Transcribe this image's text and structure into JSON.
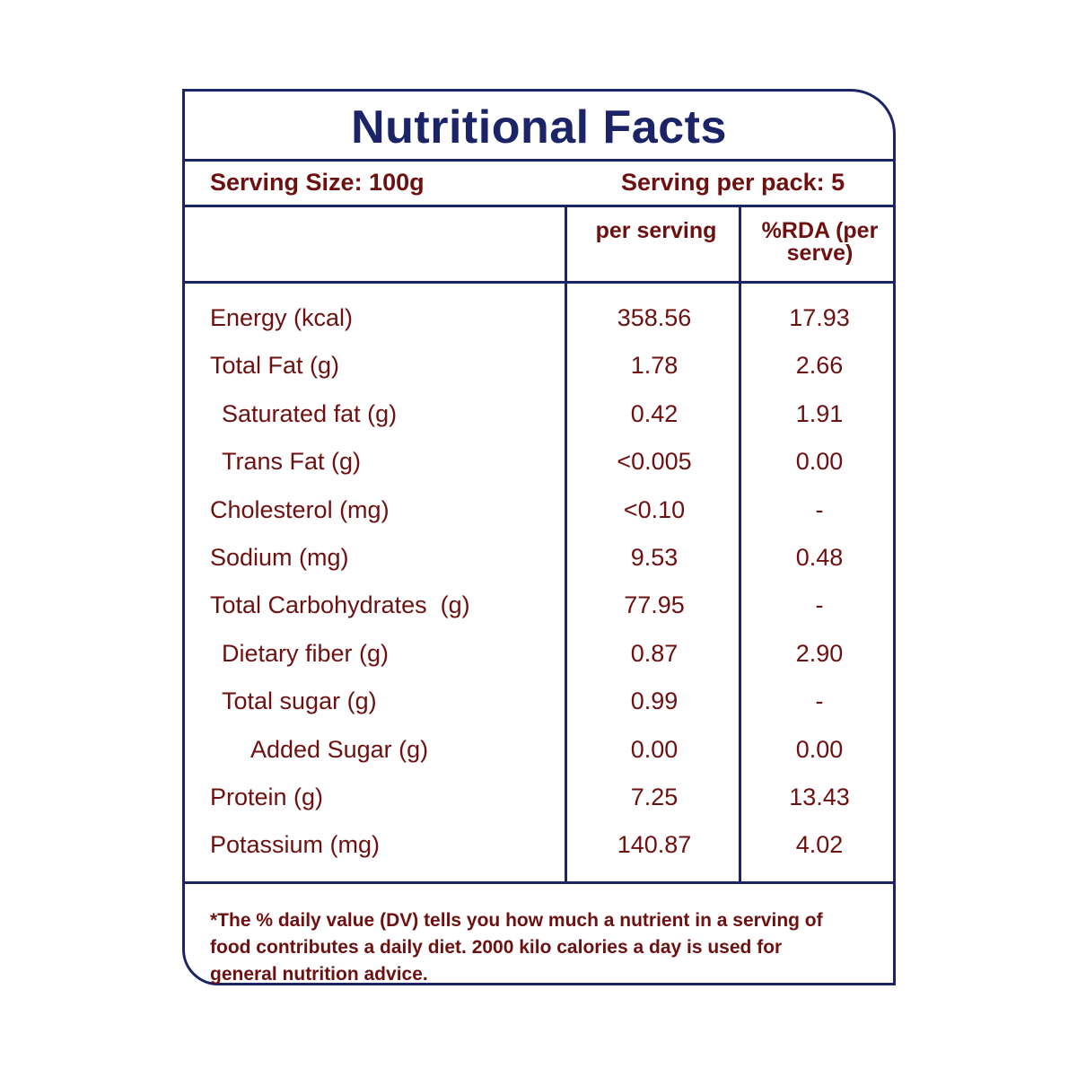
{
  "title": "Nutritional Facts",
  "serving_size": "Serving Size: 100g",
  "servings_per_pack": "Serving per pack: 5",
  "columns": {
    "per_serving": "per serving",
    "rda": "%RDA (per serve)"
  },
  "colors": {
    "border": "#1c2468",
    "text": "#6e1010"
  },
  "rows": [
    {
      "name": "Energy (kcal)",
      "per_serving": "358.56",
      "rda": "17.93",
      "indent": 0
    },
    {
      "name": "Total Fat (g)",
      "per_serving": "1.78",
      "rda": "2.66",
      "indent": 0
    },
    {
      "name": "Saturated fat (g)",
      "per_serving": "0.42",
      "rda": "1.91",
      "indent": 1
    },
    {
      "name": "Trans Fat (g)",
      "per_serving": "<0.005",
      "rda": "0.00",
      "indent": 1
    },
    {
      "name": "Cholesterol (mg)",
      "per_serving": "<0.10",
      "rda": "-",
      "indent": 0
    },
    {
      "name": "Sodium (mg)",
      "per_serving": "9.53",
      "rda": "0.48",
      "indent": 0
    },
    {
      "name": "Total Carbohydrates  (g)",
      "per_serving": "77.95",
      "rda": "-",
      "indent": 0
    },
    {
      "name": "Dietary fiber (g)",
      "per_serving": "0.87",
      "rda": "2.90",
      "indent": 1
    },
    {
      "name": "Total sugar (g)",
      "per_serving": "0.99",
      "rda": "-",
      "indent": 1
    },
    {
      "name": "Added Sugar (g)",
      "per_serving": "0.00",
      "rda": "0.00",
      "indent": 2
    },
    {
      "name": "Protein (g)",
      "per_serving": "7.25",
      "rda": "13.43",
      "indent": 0
    },
    {
      "name": "Potassium (mg)",
      "per_serving": "140.87",
      "rda": "4.02",
      "indent": 0
    }
  ],
  "footnote": "*The % daily value (DV) tells you how much a nutrient in a serving of food contributes a daily diet. 2000 kilo calories a day is used for general nutrition advice."
}
